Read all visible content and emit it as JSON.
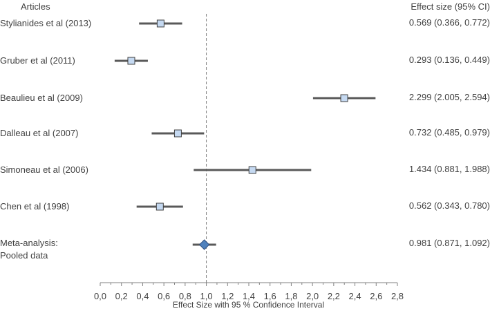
{
  "chart_data": {
    "type": "forest",
    "title": "",
    "left_column_header": "Articles",
    "right_column_header": "Effect size (95% CI)",
    "xlabel": "Effect Size with 95 % Confidence Interval",
    "xlim": [
      0.0,
      2.8
    ],
    "x_ticks": [
      "0,0",
      "0,2",
      "0,4",
      "0,6",
      "0,8",
      "1,0",
      "1,2",
      "1,4",
      "1,6",
      "1,8",
      "2,0",
      "2,2",
      "2,4",
      "2,6",
      "2,8"
    ],
    "reference_line": 1.0,
    "grid": false,
    "studies": [
      {
        "label": "Stylianides et al (2013)",
        "estimate": 0.569,
        "lower": 0.366,
        "upper": 0.772,
        "ci_text": "0.569 (0.366, 0.772)"
      },
      {
        "label": "Gruber et al (2011)",
        "estimate": 0.293,
        "lower": 0.136,
        "upper": 0.449,
        "ci_text": "0.293 (0.136, 0.449)"
      },
      {
        "label": "Beaulieu et al (2009)",
        "estimate": 2.299,
        "lower": 2.005,
        "upper": 2.594,
        "ci_text": "2.299 (2.005, 2.594)"
      },
      {
        "label": "Dalleau et al (2007)",
        "estimate": 0.732,
        "lower": 0.485,
        "upper": 0.979,
        "ci_text": "0.732 (0.485, 0.979)"
      },
      {
        "label": "Simoneau et al (2006)",
        "estimate": 1.434,
        "lower": 0.881,
        "upper": 1.988,
        "ci_text": "1.434 (0.881, 1.988)"
      },
      {
        "label": "Chen et al (1998)",
        "estimate": 0.562,
        "lower": 0.343,
        "upper": 0.78,
        "ci_text": "0.562 (0.343, 0.780)"
      }
    ],
    "pooled": {
      "label_line1": "Meta-analysis:",
      "label_line2": "Pooled data",
      "estimate": 0.981,
      "lower": 0.871,
      "upper": 1.092,
      "ci_text": "0.981 (0.871, 1.092)"
    },
    "colors": {
      "marker_fill": "#c5d9f1",
      "marker_stroke": "#404040",
      "diamond_fill": "#4f81bd",
      "ci_line": "#595959",
      "axis": "#808080",
      "reference_line": "#808080"
    }
  }
}
